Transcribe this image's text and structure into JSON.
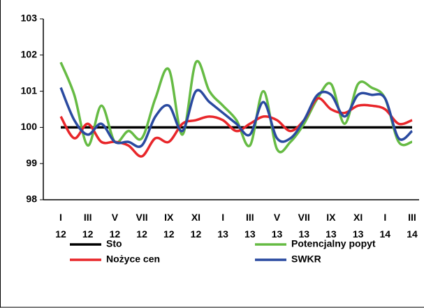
{
  "chart_data": {
    "type": "line",
    "categories": [
      [
        "I",
        "12"
      ],
      null,
      [
        "III",
        "12"
      ],
      null,
      [
        "V",
        "12"
      ],
      null,
      [
        "VII",
        "12"
      ],
      null,
      [
        "IX",
        "12"
      ],
      null,
      [
        "XI",
        "12"
      ],
      null,
      [
        "I",
        "13"
      ],
      null,
      [
        "III",
        "13"
      ],
      null,
      [
        "V",
        "13"
      ],
      null,
      [
        "VII",
        "13"
      ],
      null,
      [
        "IX",
        "13"
      ],
      null,
      [
        "XI",
        "13"
      ],
      null,
      [
        "I",
        "14"
      ],
      null,
      [
        "III",
        "14"
      ]
    ],
    "series": [
      {
        "name": "Sto",
        "color": "#000000",
        "values": [
          100,
          100,
          100,
          100,
          100,
          100,
          100,
          100,
          100,
          100,
          100,
          100,
          100,
          100,
          100,
          100,
          100,
          100,
          100,
          100,
          100,
          100,
          100,
          100,
          100,
          100,
          100
        ]
      },
      {
        "name": "Potencjalny popyt",
        "color": "#66bb44",
        "values": [
          101.8,
          100.9,
          99.5,
          100.6,
          99.6,
          99.9,
          99.7,
          100.8,
          101.6,
          99.8,
          101.8,
          101.0,
          100.6,
          100.2,
          99.5,
          101.0,
          99.4,
          99.6,
          100.1,
          100.8,
          101.2,
          100.1,
          101.2,
          101.1,
          100.8,
          99.6,
          99.6
        ]
      },
      {
        "name": "Nożyce cen",
        "color": "#e8262a",
        "values": [
          100.3,
          99.7,
          100.1,
          99.6,
          99.6,
          99.5,
          99.2,
          99.7,
          99.6,
          100.1,
          100.2,
          100.3,
          100.2,
          99.9,
          100.1,
          100.3,
          100.2,
          99.9,
          100.2,
          100.8,
          100.5,
          100.4,
          100.6,
          100.6,
          100.5,
          100.1,
          100.2
        ]
      },
      {
        "name": "SWKR",
        "color": "#2a4aa0",
        "values": [
          101.1,
          100.2,
          99.8,
          100.1,
          99.6,
          99.6,
          99.5,
          100.3,
          100.6,
          99.9,
          101.0,
          100.7,
          100.4,
          100.1,
          99.8,
          100.7,
          99.7,
          99.7,
          100.2,
          100.9,
          100.9,
          100.3,
          100.9,
          100.9,
          100.8,
          99.7,
          99.9
        ]
      }
    ],
    "ylim": [
      98,
      103
    ],
    "yticks": [
      98,
      99,
      100,
      101,
      102,
      103
    ]
  }
}
